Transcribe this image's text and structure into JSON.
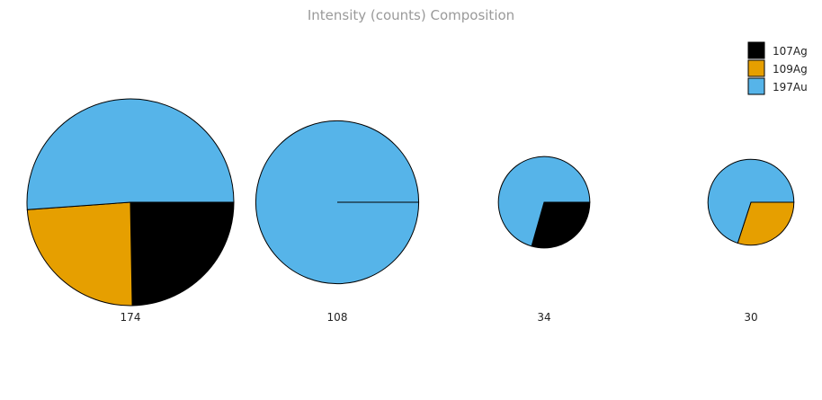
{
  "chart_data": {
    "type": "pie",
    "title": "Intensity (counts) Composition",
    "legend_position": "top-right",
    "series": [
      {
        "name": "107Ag",
        "color": "#000000"
      },
      {
        "name": "109Ag",
        "color": "#E69F00"
      },
      {
        "name": "197Au",
        "color": "#56B4E9"
      }
    ],
    "pies": [
      {
        "label": "174",
        "total": 174,
        "values": [
          43,
          42,
          89
        ]
      },
      {
        "label": "108",
        "total": 108,
        "values": [
          0,
          0,
          108
        ]
      },
      {
        "label": "34",
        "total": 34,
        "values": [
          10,
          0,
          24
        ]
      },
      {
        "label": "30",
        "total": 30,
        "values": [
          0,
          9,
          21
        ]
      }
    ]
  }
}
